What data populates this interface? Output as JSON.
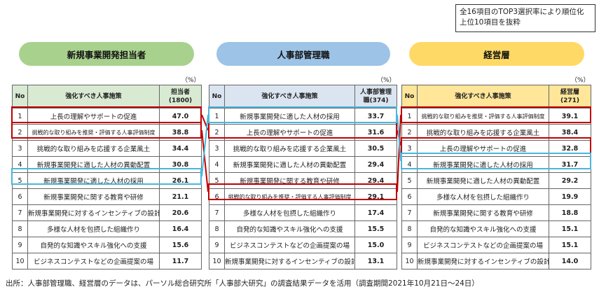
{
  "note": {
    "line1": "全16項目のTOP3選択率により順位化",
    "line2": "上位10項目を抜粋"
  },
  "percent_unit": "（%）",
  "header_no": "No",
  "header_item": "強化すべき人事施策",
  "colors": {
    "red": "#c00000",
    "blue": "#4ab6dc"
  },
  "chart_data": {
    "type": "table",
    "tables": [
      {
        "title": "新規事業開発担当者",
        "value_header_line1": "担当者",
        "value_header_line2": "(1800)",
        "header_bg": "#d9ead3",
        "pill_bg": "#a9d18e",
        "rows": [
          {
            "no": "1",
            "item": "上長の理解やサポートの促進",
            "value": "47.0"
          },
          {
            "no": "2",
            "item": "挑戦的な取り組みを推奨・評価する人事評価制度",
            "value": "38.8"
          },
          {
            "no": "3",
            "item": "挑戦的な取り組みを応援する企業風土",
            "value": "34.4"
          },
          {
            "no": "4",
            "item": "新規事業開発に適した人材の異動配置",
            "value": "30.8"
          },
          {
            "no": "5",
            "item": "新規事業開発に適した人材の採用",
            "value": "26.1"
          },
          {
            "no": "6",
            "item": "新規事業開発に関する教育や研修",
            "value": "21.1"
          },
          {
            "no": "7",
            "item": "新規事業開発に対するインセンティブの設計",
            "value": "20.6"
          },
          {
            "no": "8",
            "item": "多様な人材を包摂した組織作り",
            "value": "16.4"
          },
          {
            "no": "9",
            "item": "自発的な知識やスキル強化への支援",
            "value": "15.6"
          },
          {
            "no": "10",
            "item": "ビジネスコンテストなどの企画提案の場",
            "value": "11.7"
          }
        ]
      },
      {
        "title": "人事部管理職",
        "value_header_line1": "人事部管理",
        "value_header_line2": "職(374)",
        "header_bg": "#dbe5f1",
        "pill_bg": "#9dc3e6",
        "rows": [
          {
            "no": "1",
            "item": "新規事業開発に適した人材の採用",
            "value": "33.7"
          },
          {
            "no": "2",
            "item": "上長の理解やサポートの促進",
            "value": "31.6"
          },
          {
            "no": "3",
            "item": "挑戦的な取り組みを応援する企業風土",
            "value": "30.5"
          },
          {
            "no": "4",
            "item": "新規事業開発に適した人材の異動配置",
            "value": "29.4"
          },
          {
            "no": "5",
            "item": "新規事業開発に関する教育や研修",
            "value": "29.4"
          },
          {
            "no": "6",
            "item": "挑戦的な取り組みを推奨・評価する人事評価制度",
            "value": "29.1"
          },
          {
            "no": "7",
            "item": "多様な人材を包摂した組織作り",
            "value": "17.4"
          },
          {
            "no": "8",
            "item": "自発的な知識やスキル強化への支援",
            "value": "15.5"
          },
          {
            "no": "9",
            "item": "ビジネスコンテストなどの企画提案の場",
            "value": "15.0"
          },
          {
            "no": "10",
            "item": "新規事業開発に対するインセンティブの設計",
            "value": "13.1"
          }
        ]
      },
      {
        "title": "経営層",
        "value_header_line1": "経営層",
        "value_header_line2": "(271)",
        "header_bg": "#ffe699",
        "pill_bg": "#ffd966",
        "rows": [
          {
            "no": "1",
            "item": "挑戦的な取り組みを推奨・評価する人事評価制度",
            "value": "39.1"
          },
          {
            "no": "2",
            "item": "挑戦的な取り組みを応援する企業風土",
            "value": "38.4"
          },
          {
            "no": "3",
            "item": "上長の理解やサポートの促進",
            "value": "32.8"
          },
          {
            "no": "4",
            "item": "新規事業開発に適した人材の採用",
            "value": "31.7"
          },
          {
            "no": "5",
            "item": "新規事業開発に適した人材の異動配置",
            "value": "29.2"
          },
          {
            "no": "6",
            "item": "多様な人材を包摂した組織作り",
            "value": "19.9"
          },
          {
            "no": "7",
            "item": "新規事業開発に関する教育や研修",
            "value": "18.8"
          },
          {
            "no": "8",
            "item": "自発的な知識やスキル強化への支援",
            "value": "15.1"
          },
          {
            "no": "9",
            "item": "ビジネスコンテストなどの企画提案の場",
            "value": "15.1"
          },
          {
            "no": "10",
            "item": "新規事業開発に対するインセンティブの設計",
            "value": "14.0"
          }
        ]
      }
    ]
  },
  "source": "出所：人事部管理職、経営層のデータは、パーソル総合研究所「人事部大研究」の調査結果データを活用（調査期間2021年10月21日～24日）"
}
